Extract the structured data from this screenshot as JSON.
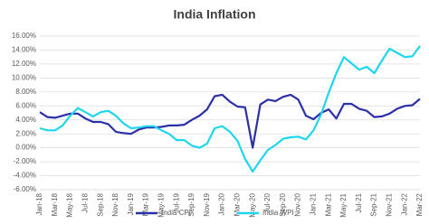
{
  "chart_data": {
    "type": "line",
    "title": "India Inflation",
    "categories": [
      "Jan-18",
      null,
      "Mar-18",
      null,
      "May-18",
      null,
      "Jul-18",
      null,
      "Sep-18",
      null,
      "Nov-18",
      null,
      "Jan-19",
      null,
      "Mar-19",
      null,
      "May-19",
      null,
      "Jul-19",
      null,
      "Sep-19",
      null,
      "Nov-19",
      null,
      "Jan-20",
      null,
      "Mar-20",
      null,
      "May-20",
      null,
      "Jul-20",
      null,
      "Sep-20",
      null,
      "Nov-20",
      null,
      "Jan-21",
      null,
      "Mar-21",
      null,
      "May-21",
      null,
      "Jul-21",
      null,
      "Sep-21",
      null,
      "Nov-21",
      null,
      "Jan-22",
      null,
      "Mar-22"
    ],
    "series": [
      {
        "name": "India CPI",
        "color": "#2b2fa8",
        "values": [
          5.1,
          4.4,
          4.3,
          4.6,
          4.9,
          4.9,
          4.2,
          3.7,
          3.7,
          3.4,
          2.3,
          2.1,
          2.0,
          2.6,
          2.9,
          2.9,
          3.0,
          3.2,
          3.2,
          3.3,
          4.0,
          4.6,
          5.5,
          7.4,
          7.6,
          6.6,
          5.9,
          5.8,
          0.0,
          6.2,
          6.9,
          6.7,
          7.3,
          7.6,
          6.9,
          4.6,
          4.1,
          5.0,
          5.5,
          4.2,
          6.3,
          6.3,
          5.6,
          5.3,
          4.4,
          4.5,
          4.9,
          5.6,
          6.0,
          6.1,
          7.0
        ]
      },
      {
        "name": "India WPI",
        "color": "#1fd6ef",
        "values": [
          2.8,
          2.5,
          2.5,
          3.2,
          4.6,
          5.7,
          5.1,
          4.5,
          5.1,
          5.3,
          4.6,
          3.5,
          2.8,
          2.9,
          3.1,
          3.1,
          2.5,
          2.0,
          1.1,
          1.1,
          0.3,
          0.0,
          0.6,
          2.8,
          3.1,
          2.3,
          1.0,
          -1.6,
          -3.4,
          -1.8,
          -0.3,
          0.4,
          1.3,
          1.5,
          1.6,
          1.2,
          2.5,
          4.8,
          7.9,
          10.7,
          13.0,
          12.1,
          11.2,
          11.6,
          10.7,
          12.5,
          14.2,
          13.6,
          13.0,
          13.1,
          14.6
        ]
      }
    ],
    "ylim": [
      -6,
      16
    ],
    "yticks": [
      {
        "value": -6,
        "label": "-6.00%"
      },
      {
        "value": -4,
        "label": "-4.00%"
      },
      {
        "value": -2,
        "label": "-2.00%"
      },
      {
        "value": 0,
        "label": "0.00%"
      },
      {
        "value": 2,
        "label": "2.00%"
      },
      {
        "value": 4,
        "label": "4.00%"
      },
      {
        "value": 6,
        "label": "6.00%"
      },
      {
        "value": 8,
        "label": "8.00%"
      },
      {
        "value": 10,
        "label": "10.00%"
      },
      {
        "value": 12,
        "label": "12.00%"
      },
      {
        "value": 14,
        "label": "14.00%"
      },
      {
        "value": 16,
        "label": "16.00%"
      }
    ],
    "grid": true,
    "legend": "bottom"
  }
}
